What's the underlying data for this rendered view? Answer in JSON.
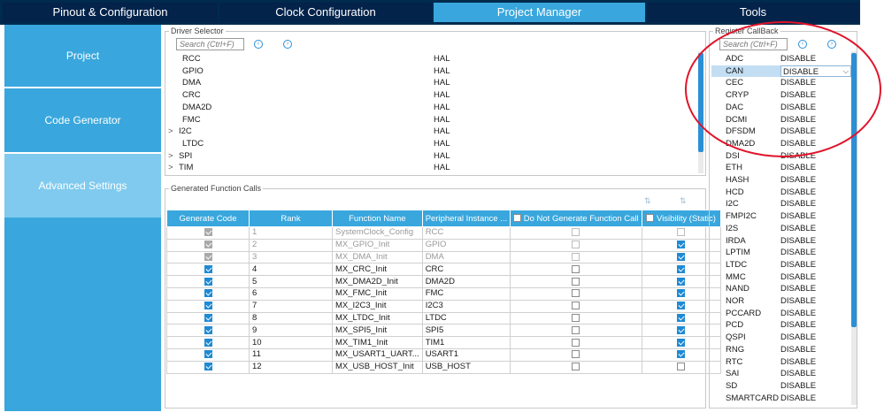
{
  "top_tabs": [
    {
      "label": "Pinout & Configuration"
    },
    {
      "label": "Clock Configuration"
    },
    {
      "label": "Project Manager"
    },
    {
      "label": "Tools"
    }
  ],
  "left_nav": [
    {
      "label": "Project"
    },
    {
      "label": "Code Generator"
    },
    {
      "label": "Advanced Settings"
    }
  ],
  "driver_selector": {
    "title": "Driver Selector",
    "search_placeholder": "Search (Ctrl+F)",
    "rows": [
      {
        "name": "RCC",
        "value": "HAL",
        "expander": ""
      },
      {
        "name": "GPIO",
        "value": "HAL",
        "expander": ""
      },
      {
        "name": "DMA",
        "value": "HAL",
        "expander": ""
      },
      {
        "name": "CRC",
        "value": "HAL",
        "expander": ""
      },
      {
        "name": "DMA2D",
        "value": "HAL",
        "expander": ""
      },
      {
        "name": "FMC",
        "value": "HAL",
        "expander": ""
      },
      {
        "name": "I2C",
        "value": "HAL",
        "expander": ">"
      },
      {
        "name": "LTDC",
        "value": "HAL",
        "expander": ""
      },
      {
        "name": "SPI",
        "value": "HAL",
        "expander": ">"
      },
      {
        "name": "TIM",
        "value": "HAL",
        "expander": ">"
      }
    ]
  },
  "function_calls": {
    "title": "Generated Function Calls",
    "headers": {
      "generate": "Generate Code",
      "rank": "Rank",
      "function": "Function Name",
      "peripheral": "Peripheral Instance ...",
      "no_generate": "Do Not Generate Function Call",
      "visibility": "Visibility (Static)"
    },
    "rows": [
      {
        "generate": true,
        "rank": "1",
        "function": "SystemClock_Config",
        "peripheral": "RCC",
        "no_generate": false,
        "visibility": false,
        "disabled": true
      },
      {
        "generate": true,
        "rank": "2",
        "function": "MX_GPIO_Init",
        "peripheral": "GPIO",
        "no_generate": false,
        "visibility": true,
        "disabled": true
      },
      {
        "generate": true,
        "rank": "3",
        "function": "MX_DMA_Init",
        "peripheral": "DMA",
        "no_generate": false,
        "visibility": true,
        "disabled": true
      },
      {
        "generate": true,
        "rank": "4",
        "function": "MX_CRC_Init",
        "peripheral": "CRC",
        "no_generate": false,
        "visibility": true,
        "disabled": false
      },
      {
        "generate": true,
        "rank": "5",
        "function": "MX_DMA2D_Init",
        "peripheral": "DMA2D",
        "no_generate": false,
        "visibility": true,
        "disabled": false
      },
      {
        "generate": true,
        "rank": "6",
        "function": "MX_FMC_Init",
        "peripheral": "FMC",
        "no_generate": false,
        "visibility": true,
        "disabled": false
      },
      {
        "generate": true,
        "rank": "7",
        "function": "MX_I2C3_Init",
        "peripheral": "I2C3",
        "no_generate": false,
        "visibility": true,
        "disabled": false
      },
      {
        "generate": true,
        "rank": "8",
        "function": "MX_LTDC_Init",
        "peripheral": "LTDC",
        "no_generate": false,
        "visibility": true,
        "disabled": false
      },
      {
        "generate": true,
        "rank": "9",
        "function": "MX_SPI5_Init",
        "peripheral": "SPI5",
        "no_generate": false,
        "visibility": true,
        "disabled": false
      },
      {
        "generate": true,
        "rank": "10",
        "function": "MX_TIM1_Init",
        "peripheral": "TIM1",
        "no_generate": false,
        "visibility": true,
        "disabled": false
      },
      {
        "generate": true,
        "rank": "11",
        "function": "MX_USART1_UART...",
        "peripheral": "USART1",
        "no_generate": false,
        "visibility": true,
        "disabled": false
      },
      {
        "generate": true,
        "rank": "12",
        "function": "MX_USB_HOST_Init",
        "peripheral": "USB_HOST",
        "no_generate": false,
        "visibility": false,
        "disabled": false
      }
    ]
  },
  "register_callback": {
    "title": "Register CallBack",
    "search_placeholder": "Search (Ctrl+F)",
    "selected_index": 1,
    "rows": [
      {
        "name": "ADC",
        "value": "DISABLE"
      },
      {
        "name": "CAN",
        "value": "DISABLE"
      },
      {
        "name": "CEC",
        "value": "DISABLE"
      },
      {
        "name": "CRYP",
        "value": "DISABLE"
      },
      {
        "name": "DAC",
        "value": "DISABLE"
      },
      {
        "name": "DCMI",
        "value": "DISABLE"
      },
      {
        "name": "DFSDM",
        "value": "DISABLE"
      },
      {
        "name": "DMA2D",
        "value": "DISABLE"
      },
      {
        "name": "DSI",
        "value": "DISABLE"
      },
      {
        "name": "ETH",
        "value": "DISABLE"
      },
      {
        "name": "HASH",
        "value": "DISABLE"
      },
      {
        "name": "HCD",
        "value": "DISABLE"
      },
      {
        "name": "I2C",
        "value": "DISABLE"
      },
      {
        "name": "FMPI2C",
        "value": "DISABLE"
      },
      {
        "name": "I2S",
        "value": "DISABLE"
      },
      {
        "name": "IRDA",
        "value": "DISABLE"
      },
      {
        "name": "LPTIM",
        "value": "DISABLE"
      },
      {
        "name": "LTDC",
        "value": "DISABLE"
      },
      {
        "name": "MMC",
        "value": "DISABLE"
      },
      {
        "name": "NAND",
        "value": "DISABLE"
      },
      {
        "name": "NOR",
        "value": "DISABLE"
      },
      {
        "name": "PCCARD",
        "value": "DISABLE"
      },
      {
        "name": "PCD",
        "value": "DISABLE"
      },
      {
        "name": "QSPI",
        "value": "DISABLE"
      },
      {
        "name": "RNG",
        "value": "DISABLE"
      },
      {
        "name": "RTC",
        "value": "DISABLE"
      },
      {
        "name": "SAI",
        "value": "DISABLE"
      },
      {
        "name": "SD",
        "value": "DISABLE"
      },
      {
        "name": "SMARTCARD",
        "value": "DISABLE"
      }
    ]
  },
  "colors": {
    "accent": "#39a7dd",
    "header_dark": "#03234b",
    "nav_selected": "#7fcaee",
    "annotation": "#e0142a"
  }
}
